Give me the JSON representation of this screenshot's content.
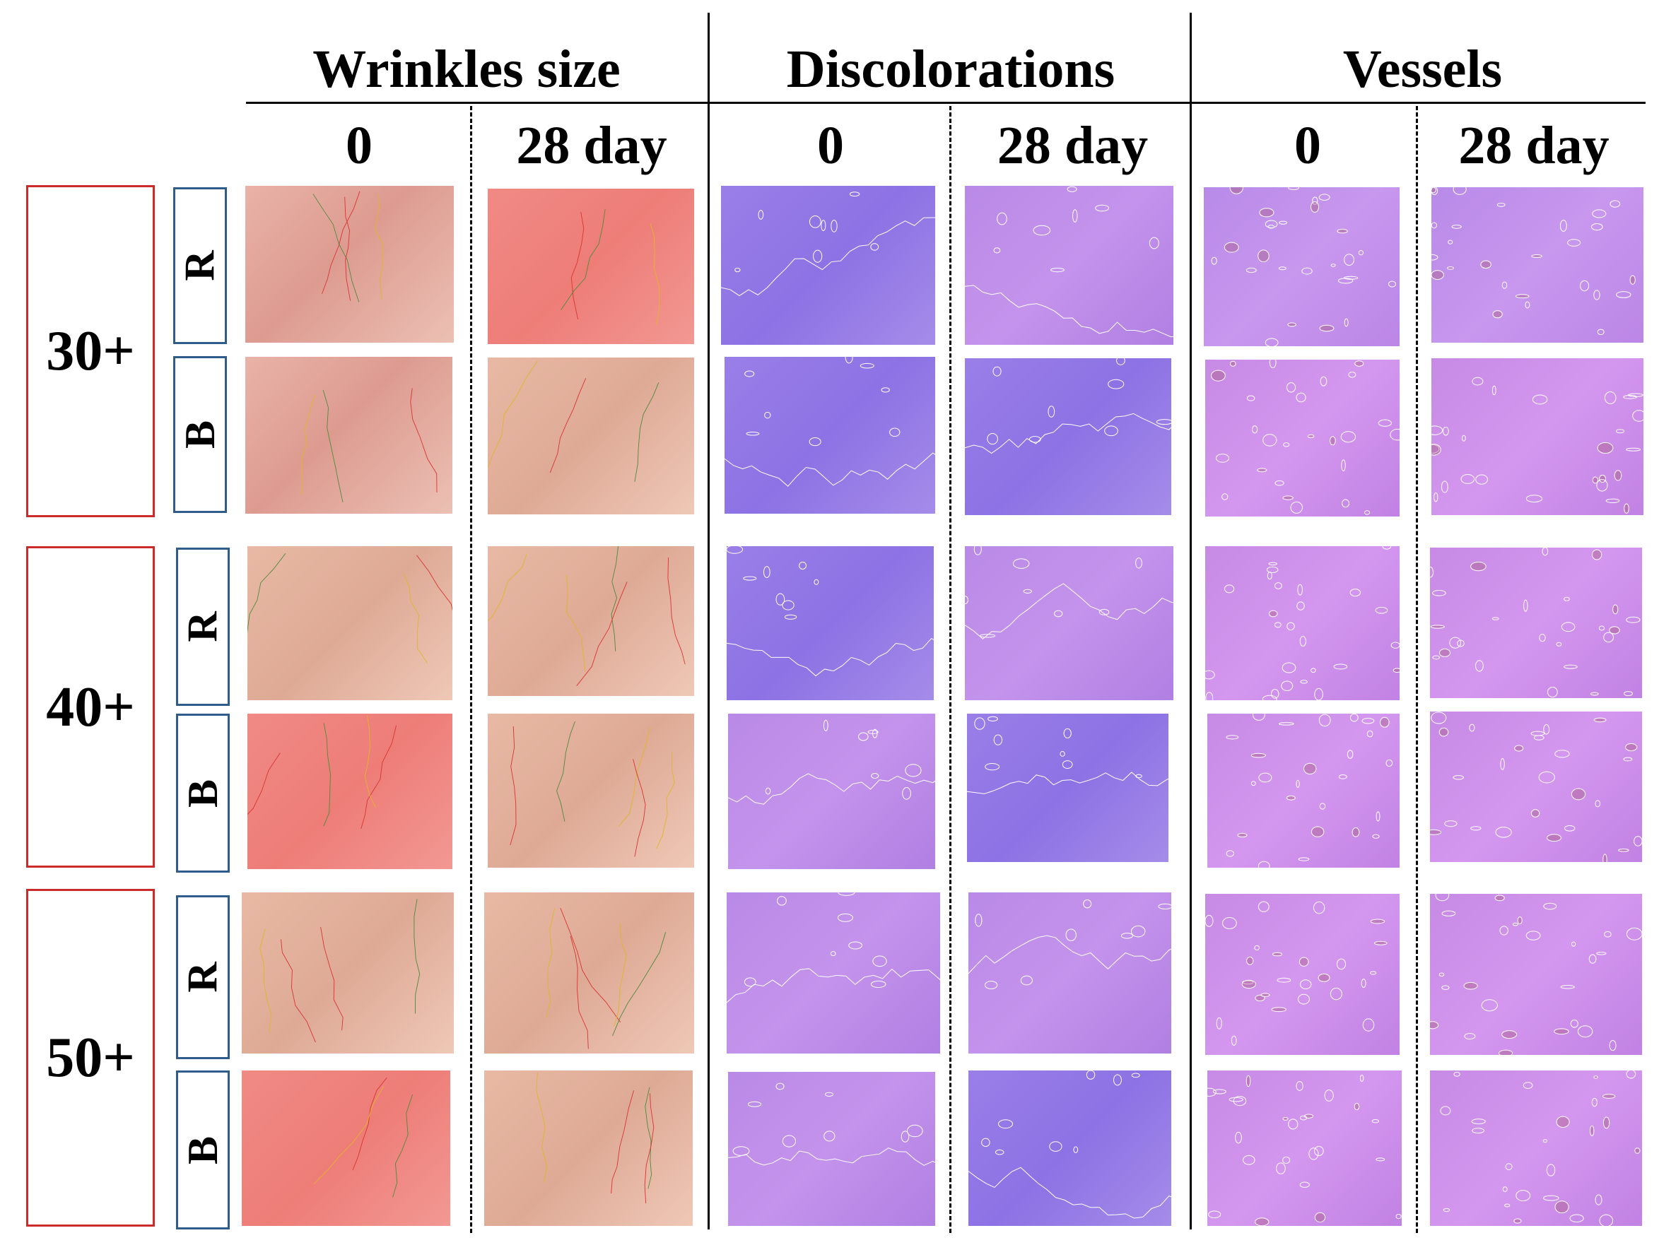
{
  "groups": [
    "Wrinkles size",
    "Discolorations",
    "Vessels"
  ],
  "subheaders": [
    "0",
    "28 day",
    "0",
    "28 day",
    "0",
    "28 day"
  ],
  "ages": [
    "30+",
    "40+",
    "50+"
  ],
  "types": [
    "R",
    "B",
    "R",
    "B",
    "R",
    "B"
  ],
  "colors": {
    "age_box_border": "#cc2b2b",
    "type_box_border": "#2f5c8a",
    "wrinkle_marks": [
      "#d9342f",
      "#e0b52a",
      "#4f8a3a"
    ],
    "contour_marks": "#ffffff"
  }
}
